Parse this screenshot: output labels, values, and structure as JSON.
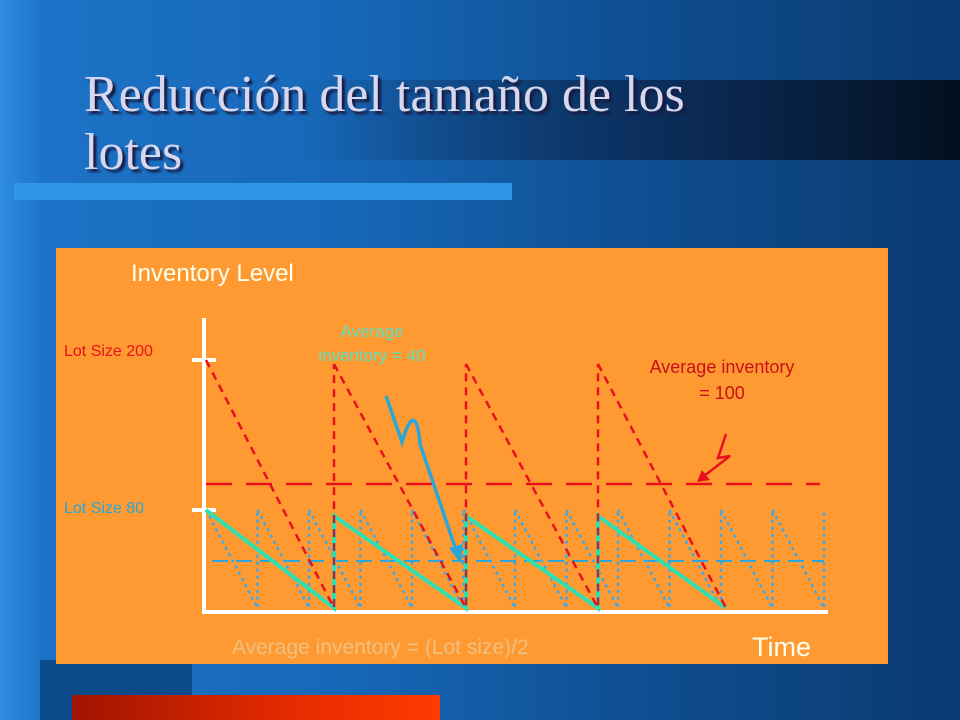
{
  "slide": {
    "title": "Reducción del tamaño de los lotes"
  },
  "chart_data": {
    "type": "line",
    "title": "",
    "xlabel": "Time",
    "ylabel": "Inventory Level",
    "y_tick_labels": [
      "Lot Size 200",
      "Lot Size 80"
    ],
    "grid": false,
    "legend": "none",
    "series": [
      {
        "lot_size": 200,
        "average_level": 100,
        "style": "red dashed sawtooth",
        "color": "#e8101c",
        "cycles": 4,
        "x": [
          0,
          1,
          1,
          2,
          2,
          3,
          3,
          4,
          4,
          5,
          5
        ],
        "y": [
          200,
          0,
          200,
          0,
          200,
          0,
          200,
          0,
          0,
          0,
          0
        ]
      },
      {
        "lot_size": 80,
        "average_level": 40,
        "style": "teal solid sawtooth",
        "color": "#2ee0b0",
        "x": [
          0,
          1,
          1,
          2,
          2,
          3,
          3,
          4
        ],
        "y": [
          80,
          0,
          80,
          0,
          80,
          0,
          80,
          0
        ]
      },
      {
        "lot_size": 80,
        "style": "blue dotted sawtooth",
        "color": "#3aa8e8",
        "teeth": 12
      }
    ],
    "annotations": [
      {
        "text": "Average\ninventory = 40",
        "color": "#5fe0c0",
        "arrow_color": "#2aa6d8"
      },
      {
        "text": "Average inventory\n= 100",
        "color": "#c8101a",
        "arrow_color": "#e8101c"
      },
      {
        "text": "Average inventory = (Lot size)/2",
        "color": "#f0c080"
      }
    ]
  }
}
